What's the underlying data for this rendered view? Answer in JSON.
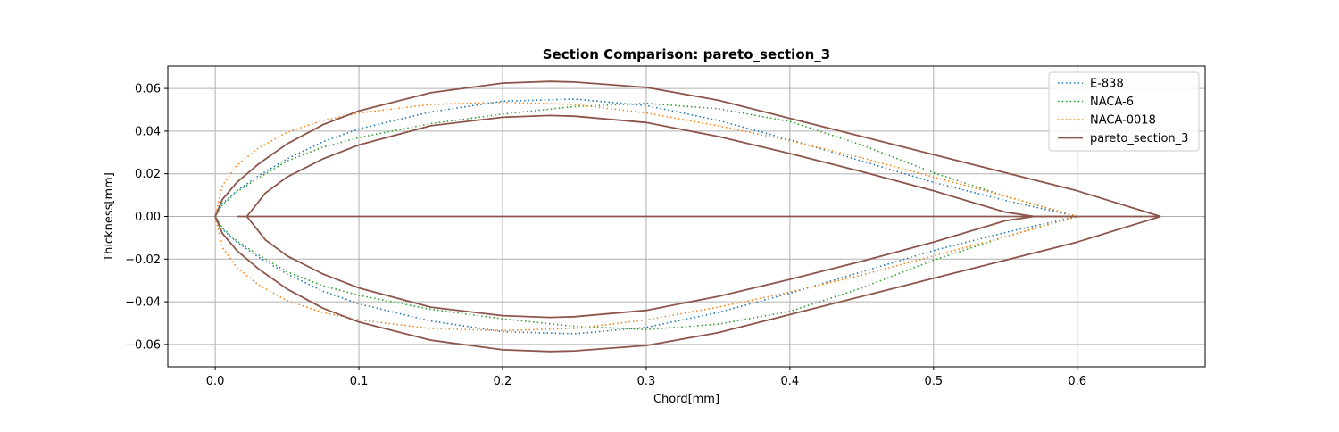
{
  "chart_data": {
    "type": "line",
    "title": "Section Comparison: pareto_section_3",
    "xlabel": "Chord[mm]",
    "ylabel": "Thickness[mm]",
    "xlim": [
      -0.033,
      0.689
    ],
    "ylim": [
      -0.0705,
      0.0705
    ],
    "xticks": [
      0.0,
      0.1,
      0.2,
      0.3,
      0.4,
      0.5,
      0.6
    ],
    "xtick_labels": [
      "0.0",
      "0.1",
      "0.2",
      "0.3",
      "0.4",
      "0.5",
      "0.6"
    ],
    "yticks": [
      -0.06,
      -0.04,
      -0.02,
      0.0,
      0.02,
      0.04,
      0.06
    ],
    "ytick_labels": [
      "−0.06",
      "−0.04",
      "−0.02",
      "0.00",
      "0.02",
      "0.04",
      "0.06"
    ],
    "grid": true,
    "legend_position": "top-right",
    "series": [
      {
        "name": "E-838",
        "color": "#1f77b4",
        "style": "dotted",
        "x": [
          0.6,
          0.55,
          0.5,
          0.45,
          0.4,
          0.35,
          0.3,
          0.25,
          0.2,
          0.15,
          0.1,
          0.075,
          0.05,
          0.03,
          0.015,
          0.005,
          0.0,
          0.005,
          0.015,
          0.03,
          0.05,
          0.075,
          0.1,
          0.15,
          0.2,
          0.25,
          0.3,
          0.35,
          0.4,
          0.45,
          0.5,
          0.55,
          0.6
        ],
        "y": [
          0.0,
          0.0075,
          0.016,
          0.026,
          0.036,
          0.045,
          0.052,
          0.055,
          0.054,
          0.049,
          0.041,
          0.035,
          0.027,
          0.019,
          0.012,
          0.006,
          0.0,
          -0.006,
          -0.012,
          -0.019,
          -0.027,
          -0.035,
          -0.041,
          -0.049,
          -0.054,
          -0.055,
          -0.052,
          -0.045,
          -0.036,
          -0.026,
          -0.016,
          -0.0075,
          0.0
        ]
      },
      {
        "name": "NACA-6",
        "color": "#2ca02c",
        "style": "dotted",
        "x": [
          0.6,
          0.55,
          0.5,
          0.45,
          0.4,
          0.35,
          0.3,
          0.25,
          0.2,
          0.15,
          0.1,
          0.075,
          0.05,
          0.03,
          0.015,
          0.005,
          0.0,
          0.005,
          0.015,
          0.03,
          0.05,
          0.075,
          0.1,
          0.15,
          0.2,
          0.25,
          0.3,
          0.35,
          0.4,
          0.45,
          0.5,
          0.55,
          0.6
        ],
        "y": [
          0.0,
          0.0095,
          0.0205,
          0.0335,
          0.0445,
          0.0505,
          0.053,
          0.0515,
          0.048,
          0.0435,
          0.037,
          0.0325,
          0.026,
          0.018,
          0.0115,
          0.0055,
          0.0,
          -0.0055,
          -0.0115,
          -0.018,
          -0.026,
          -0.0325,
          -0.037,
          -0.0435,
          -0.048,
          -0.0515,
          -0.053,
          -0.0505,
          -0.0445,
          -0.0335,
          -0.0205,
          -0.0095,
          0.0
        ]
      },
      {
        "name": "NACA-0018",
        "color": "#ff7f0e",
        "style": "dotted",
        "x": [
          0.6,
          0.55,
          0.5,
          0.45,
          0.4,
          0.35,
          0.3,
          0.25,
          0.2,
          0.15,
          0.1,
          0.075,
          0.05,
          0.03,
          0.015,
          0.005,
          0.0,
          0.005,
          0.015,
          0.03,
          0.05,
          0.075,
          0.1,
          0.15,
          0.2,
          0.25,
          0.3,
          0.35,
          0.4,
          0.45,
          0.5,
          0.55,
          0.6
        ],
        "y": [
          0.0,
          0.0095,
          0.0185,
          0.0275,
          0.0355,
          0.0425,
          0.0485,
          0.0525,
          0.0535,
          0.0525,
          0.0485,
          0.045,
          0.0395,
          0.032,
          0.024,
          0.0145,
          0.0,
          -0.0145,
          -0.024,
          -0.032,
          -0.0395,
          -0.045,
          -0.0485,
          -0.0525,
          -0.0535,
          -0.0525,
          -0.0485,
          -0.0425,
          -0.0355,
          -0.0275,
          -0.0185,
          -0.0095,
          0.0
        ]
      },
      {
        "name": "pareto_section_3",
        "color": "#8c564b",
        "style": "solid",
        "x": [
          0.658,
          0.6,
          0.55,
          0.5,
          0.45,
          0.4,
          0.35,
          0.3,
          0.25,
          0.233,
          0.2,
          0.15,
          0.1,
          0.075,
          0.05,
          0.03,
          0.015,
          0.005,
          0.0,
          0.005,
          0.015,
          0.03,
          0.05,
          0.075,
          0.1,
          0.15,
          0.2,
          0.233,
          0.25,
          0.3,
          0.35,
          0.4,
          0.45,
          0.5,
          0.55,
          0.6,
          0.658
        ],
        "y": [
          0.0,
          0.012,
          0.0205,
          0.029,
          0.0375,
          0.046,
          0.0545,
          0.0605,
          0.063,
          0.0633,
          0.0625,
          0.058,
          0.0495,
          0.043,
          0.034,
          0.0245,
          0.016,
          0.008,
          0.0,
          -0.008,
          -0.016,
          -0.0245,
          -0.034,
          -0.043,
          -0.0495,
          -0.058,
          -0.0625,
          -0.0633,
          -0.063,
          -0.0605,
          -0.0545,
          -0.046,
          -0.0375,
          -0.029,
          -0.0205,
          -0.012,
          0.0
        ]
      },
      {
        "name": "pareto_section_3",
        "color": "#8c564b",
        "style": "solid",
        "x": [
          0.6,
          0.57,
          0.55,
          0.5,
          0.45,
          0.4,
          0.35,
          0.3,
          0.25,
          0.233,
          0.2,
          0.15,
          0.1,
          0.075,
          0.05,
          0.035,
          0.022,
          0.035,
          0.05,
          0.075,
          0.1,
          0.15,
          0.2,
          0.233,
          0.25,
          0.3,
          0.35,
          0.4,
          0.45,
          0.5,
          0.55,
          0.57,
          0.6
        ],
        "y": [
          0.0,
          0.0,
          0.002,
          0.012,
          0.021,
          0.0295,
          0.0375,
          0.044,
          0.047,
          0.0473,
          0.0465,
          0.0425,
          0.0335,
          0.027,
          0.0185,
          0.011,
          0.0,
          -0.011,
          -0.0185,
          -0.027,
          -0.0335,
          -0.0425,
          -0.0465,
          -0.0473,
          -0.047,
          -0.044,
          -0.0375,
          -0.0295,
          -0.021,
          -0.012,
          -0.002,
          0.0,
          0.0
        ]
      },
      {
        "name": "pareto_section_3",
        "color": "#8c564b",
        "style": "solid",
        "x": [
          0.015,
          0.022,
          0.6,
          0.658
        ],
        "y": [
          0.0,
          0.0,
          0.0,
          0.0
        ]
      }
    ]
  }
}
